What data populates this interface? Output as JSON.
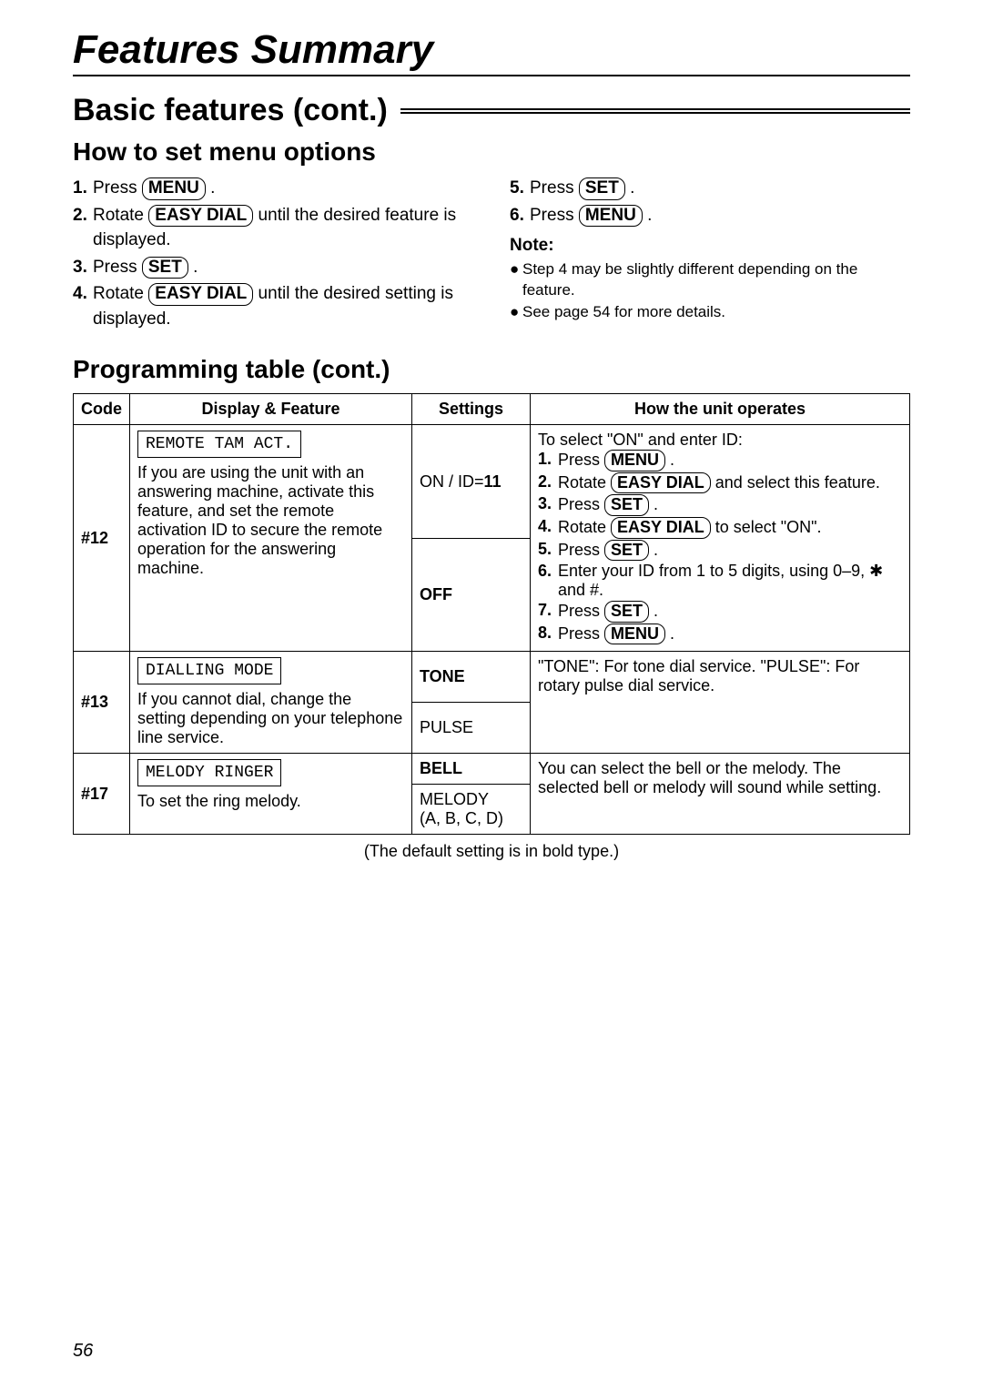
{
  "page_title": "Features Summary",
  "section_header": "Basic features (cont.)",
  "subtitle": "How to set menu options",
  "steps_left": [
    {
      "num": "1.",
      "prefix": "Press ",
      "btn": "MENU",
      "suffix": " ."
    },
    {
      "num": "2.",
      "prefix": "Rotate ",
      "btn": "EASY DIAL",
      "suffix": " until the desired feature is displayed."
    },
    {
      "num": "3.",
      "prefix": "Press ",
      "btn": "SET",
      "suffix": " ."
    },
    {
      "num": "4.",
      "prefix": "Rotate ",
      "btn": "EASY DIAL",
      "suffix": " until the desired setting is displayed."
    }
  ],
  "steps_right": [
    {
      "num": "5.",
      "prefix": "Press ",
      "btn": "SET",
      "suffix": " ."
    },
    {
      "num": "6.",
      "prefix": "Press ",
      "btn": "MENU",
      "suffix": " ."
    }
  ],
  "note_title": "Note:",
  "notes": [
    "Step 4 may be slightly different depending on the feature.",
    "See page 54 for more details."
  ],
  "prog_title": "Programming table (cont.)",
  "table_headers": {
    "code": "Code",
    "display": "Display & Feature",
    "settings": "Settings",
    "operates": "How the unit operates"
  },
  "row12": {
    "code": "#12",
    "display_box": "REMOTE TAM ACT.",
    "display_desc": "If you are using the unit with an answering machine, activate this feature, and set the remote activation ID to secure the remote operation for the answering machine.",
    "setting1_a": "ON / ID=",
    "setting1_b": "11",
    "setting2": "OFF",
    "op_intro": "To select \"ON\" and enter ID:",
    "op_steps": [
      {
        "num": "1.",
        "prefix": "Press ",
        "btn": "MENU",
        "suffix": " ."
      },
      {
        "num": "2.",
        "prefix": "Rotate ",
        "btn": "EASY DIAL",
        "suffix": " and select this feature."
      },
      {
        "num": "3.",
        "prefix": "Press ",
        "btn": "SET",
        "suffix": " ."
      },
      {
        "num": "4.",
        "prefix": "Rotate ",
        "btn": "EASY DIAL",
        "suffix": " to select \"ON\"."
      },
      {
        "num": "5.",
        "prefix": "Press ",
        "btn": "SET",
        "suffix": " ."
      },
      {
        "num": "6.",
        "prefix": "Enter your ID from 1 to 5 digits, using 0–9, ✱ and #.",
        "btn": null,
        "suffix": ""
      },
      {
        "num": "7.",
        "prefix": "Press ",
        "btn": "SET",
        "suffix": " ."
      },
      {
        "num": "8.",
        "prefix": "Press ",
        "btn": "MENU",
        "suffix": " ."
      }
    ]
  },
  "row13": {
    "code": "#13",
    "display_box": "DIALLING MODE",
    "display_desc": "If you cannot dial, change the setting depending on your telephone line service.",
    "setting1": "TONE",
    "setting2": "PULSE",
    "op_text": "\"TONE\": For tone dial service. \"PULSE\": For rotary pulse dial service."
  },
  "row17": {
    "code": "#17",
    "display_box": "MELODY RINGER",
    "display_desc": "To set the ring melody.",
    "setting1": "BELL",
    "setting2a": "MELODY",
    "setting2b": "(A, B, C, D)",
    "op_text": "You can select the bell or the melody. The selected bell or melody will sound while setting."
  },
  "default_note": "(The default setting is in bold type.)",
  "page_number": "56"
}
